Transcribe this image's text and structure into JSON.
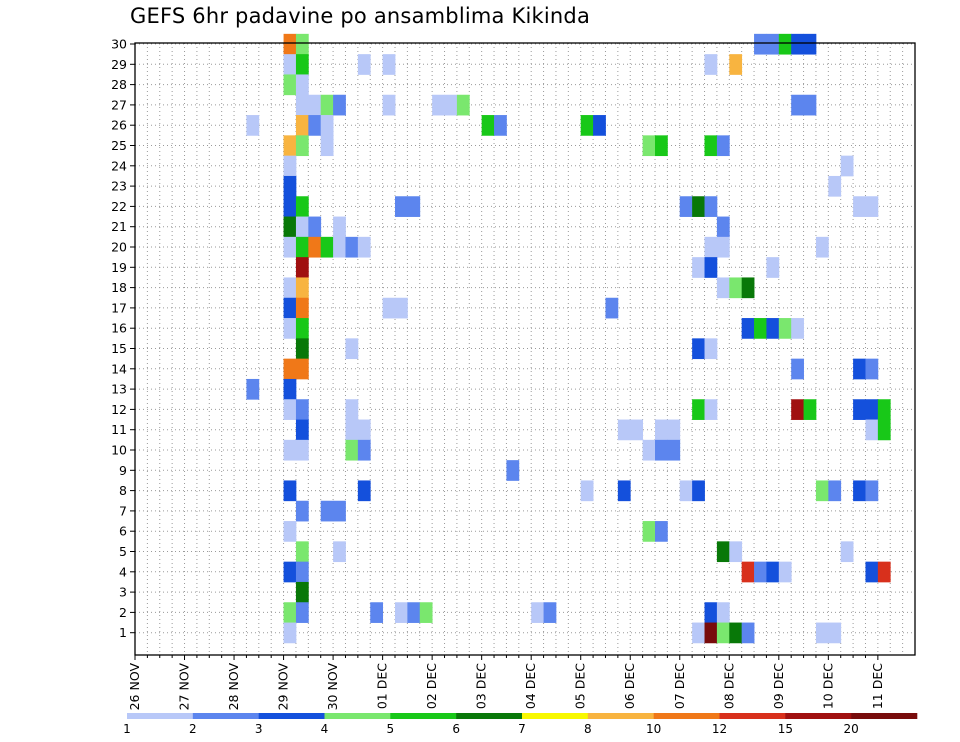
{
  "chart_data": {
    "type": "heatmap",
    "title": "GEFS 6hr padavine po ansamblima Kikinda",
    "xlabel": "",
    "ylabel": "",
    "x_ticks": [
      "26 NOV",
      "27 NOV",
      "28 NOV",
      "29 NOV",
      "30 NOV",
      "01 DEC",
      "02 DEC",
      "03 DEC",
      "04 DEC",
      "05 DEC",
      "06 DEC",
      "07 DEC",
      "08 DEC",
      "09 DEC",
      "10 DEC",
      "11 DEC"
    ],
    "y_ticks": [
      1,
      2,
      3,
      4,
      5,
      6,
      7,
      8,
      9,
      10,
      11,
      12,
      13,
      14,
      15,
      16,
      17,
      18,
      19,
      20,
      21,
      22,
      23,
      24,
      25,
      26,
      27,
      28,
      29,
      30
    ],
    "grid": true,
    "x_unit": "6-hour step from 26 NOV 00UTC",
    "color_scale": {
      "labels": [
        "1",
        "2",
        "3",
        "4",
        "5",
        "6",
        "7",
        "8",
        "10",
        "12",
        "15",
        "20"
      ],
      "colors": [
        "#b8c8f8",
        "#5c85ee",
        "#1450dc",
        "#7ae76e",
        "#18c818",
        "#087808",
        "#f8f800",
        "#f8b440",
        "#f07818",
        "#d8301c",
        "#a01010",
        "#780c0c"
      ]
    },
    "cells": [
      {
        "m": 30,
        "t": [
          [
            12,
            9
          ],
          [
            13,
            4
          ],
          [
            50,
            2
          ],
          [
            51,
            2
          ],
          [
            52,
            5
          ],
          [
            53,
            3
          ],
          [
            54,
            3
          ]
        ]
      },
      {
        "m": 29,
        "t": [
          [
            12,
            1
          ],
          [
            13,
            5
          ],
          [
            18,
            1
          ],
          [
            20,
            1
          ],
          [
            46,
            1
          ],
          [
            48,
            8
          ]
        ]
      },
      {
        "m": 28,
        "t": [
          [
            12,
            4
          ],
          [
            13,
            1
          ]
        ]
      },
      {
        "m": 27,
        "t": [
          [
            13,
            1
          ],
          [
            14,
            1
          ],
          [
            15,
            4
          ],
          [
            16,
            2
          ],
          [
            20,
            1
          ],
          [
            24,
            1
          ],
          [
            25,
            1
          ],
          [
            26,
            4
          ],
          [
            53,
            2
          ],
          [
            54,
            2
          ]
        ]
      },
      {
        "m": 26,
        "t": [
          [
            9,
            1
          ],
          [
            13,
            8
          ],
          [
            14,
            2
          ],
          [
            15,
            1
          ],
          [
            28,
            5
          ],
          [
            29,
            2
          ],
          [
            36,
            5
          ],
          [
            37,
            3
          ]
        ]
      },
      {
        "m": 25,
        "t": [
          [
            12,
            8
          ],
          [
            13,
            4
          ],
          [
            15,
            1
          ],
          [
            41,
            4
          ],
          [
            42,
            5
          ],
          [
            46,
            5
          ],
          [
            47,
            2
          ]
        ]
      },
      {
        "m": 24,
        "t": [
          [
            12,
            1
          ],
          [
            57,
            1
          ]
        ]
      },
      {
        "m": 23,
        "t": [
          [
            12,
            3
          ],
          [
            56,
            1
          ]
        ]
      },
      {
        "m": 22,
        "t": [
          [
            12,
            3
          ],
          [
            13,
            5
          ],
          [
            21,
            2
          ],
          [
            22,
            2
          ],
          [
            44,
            2
          ],
          [
            45,
            6
          ],
          [
            46,
            2
          ],
          [
            58,
            1
          ],
          [
            59,
            1
          ]
        ]
      },
      {
        "m": 21,
        "t": [
          [
            12,
            6
          ],
          [
            13,
            1
          ],
          [
            14,
            2
          ],
          [
            16,
            1
          ],
          [
            47,
            2
          ]
        ]
      },
      {
        "m": 20,
        "t": [
          [
            12,
            1
          ],
          [
            13,
            5
          ],
          [
            14,
            9
          ],
          [
            15,
            5
          ],
          [
            16,
            1
          ],
          [
            17,
            2
          ],
          [
            18,
            1
          ],
          [
            55,
            1
          ],
          [
            46,
            1
          ],
          [
            47,
            1
          ]
        ]
      },
      {
        "m": 19,
        "t": [
          [
            13,
            11
          ],
          [
            45,
            1
          ],
          [
            46,
            3
          ],
          [
            51,
            1
          ]
        ]
      },
      {
        "m": 18,
        "t": [
          [
            12,
            1
          ],
          [
            13,
            8
          ],
          [
            47,
            1
          ],
          [
            48,
            4
          ],
          [
            49,
            6
          ]
        ]
      },
      {
        "m": 17,
        "t": [
          [
            12,
            3
          ],
          [
            13,
            9
          ],
          [
            20,
            1
          ],
          [
            21,
            1
          ],
          [
            38,
            2
          ]
        ]
      },
      {
        "m": 16,
        "t": [
          [
            12,
            1
          ],
          [
            13,
            5
          ],
          [
            49,
            3
          ],
          [
            50,
            5
          ],
          [
            51,
            3
          ],
          [
            52,
            4
          ],
          [
            53,
            1
          ]
        ]
      },
      {
        "m": 15,
        "t": [
          [
            13,
            6
          ],
          [
            17,
            1
          ],
          [
            45,
            3
          ],
          [
            46,
            1
          ]
        ]
      },
      {
        "m": 14,
        "t": [
          [
            12,
            9
          ],
          [
            13,
            9
          ],
          [
            53,
            2
          ],
          [
            58,
            3
          ],
          [
            59,
            2
          ]
        ]
      },
      {
        "m": 13,
        "t": [
          [
            9,
            2
          ],
          [
            12,
            3
          ]
        ]
      },
      {
        "m": 12,
        "t": [
          [
            12,
            1
          ],
          [
            13,
            2
          ],
          [
            17,
            1
          ],
          [
            45,
            5
          ],
          [
            46,
            1
          ],
          [
            53,
            11
          ],
          [
            54,
            5
          ],
          [
            58,
            3
          ],
          [
            59,
            3
          ],
          [
            60,
            5
          ]
        ]
      },
      {
        "m": 11,
        "t": [
          [
            13,
            3
          ],
          [
            17,
            1
          ],
          [
            18,
            1
          ],
          [
            39,
            1
          ],
          [
            40,
            1
          ],
          [
            42,
            1
          ],
          [
            43,
            1
          ],
          [
            59,
            1
          ],
          [
            60,
            5
          ]
        ]
      },
      {
        "m": 10,
        "t": [
          [
            12,
            1
          ],
          [
            13,
            1
          ],
          [
            17,
            4
          ],
          [
            18,
            2
          ],
          [
            41,
            1
          ],
          [
            42,
            2
          ],
          [
            43,
            2
          ]
        ]
      },
      {
        "m": 9,
        "t": [
          [
            30,
            2
          ]
        ]
      },
      {
        "m": 8,
        "t": [
          [
            12,
            3
          ],
          [
            18,
            3
          ],
          [
            36,
            1
          ],
          [
            39,
            3
          ],
          [
            44,
            1
          ],
          [
            45,
            3
          ],
          [
            55,
            4
          ],
          [
            56,
            2
          ],
          [
            58,
            3
          ],
          [
            59,
            2
          ]
        ]
      },
      {
        "m": 7,
        "t": [
          [
            13,
            2
          ],
          [
            15,
            2
          ],
          [
            16,
            2
          ]
        ]
      },
      {
        "m": 6,
        "t": [
          [
            12,
            1
          ],
          [
            41,
            4
          ],
          [
            42,
            2
          ]
        ]
      },
      {
        "m": 5,
        "t": [
          [
            13,
            4
          ],
          [
            16,
            1
          ],
          [
            47,
            6
          ],
          [
            48,
            1
          ],
          [
            57,
            1
          ]
        ]
      },
      {
        "m": 4,
        "t": [
          [
            12,
            3
          ],
          [
            13,
            2
          ],
          [
            49,
            10
          ],
          [
            50,
            2
          ],
          [
            51,
            3
          ],
          [
            52,
            1
          ],
          [
            59,
            3
          ],
          [
            60,
            10
          ]
        ]
      },
      {
        "m": 3,
        "t": [
          [
            13,
            6
          ]
        ]
      },
      {
        "m": 2,
        "t": [
          [
            12,
            4
          ],
          [
            13,
            2
          ],
          [
            19,
            2
          ],
          [
            21,
            1
          ],
          [
            22,
            2
          ],
          [
            23,
            4
          ],
          [
            32,
            1
          ],
          [
            33,
            2
          ],
          [
            46,
            3
          ],
          [
            47,
            1
          ]
        ]
      },
      {
        "m": 1,
        "t": [
          [
            12,
            1
          ],
          [
            45,
            1
          ],
          [
            46,
            12
          ],
          [
            47,
            4
          ],
          [
            48,
            6
          ],
          [
            49,
            2
          ],
          [
            55,
            1
          ],
          [
            56,
            1
          ]
        ]
      }
    ]
  }
}
